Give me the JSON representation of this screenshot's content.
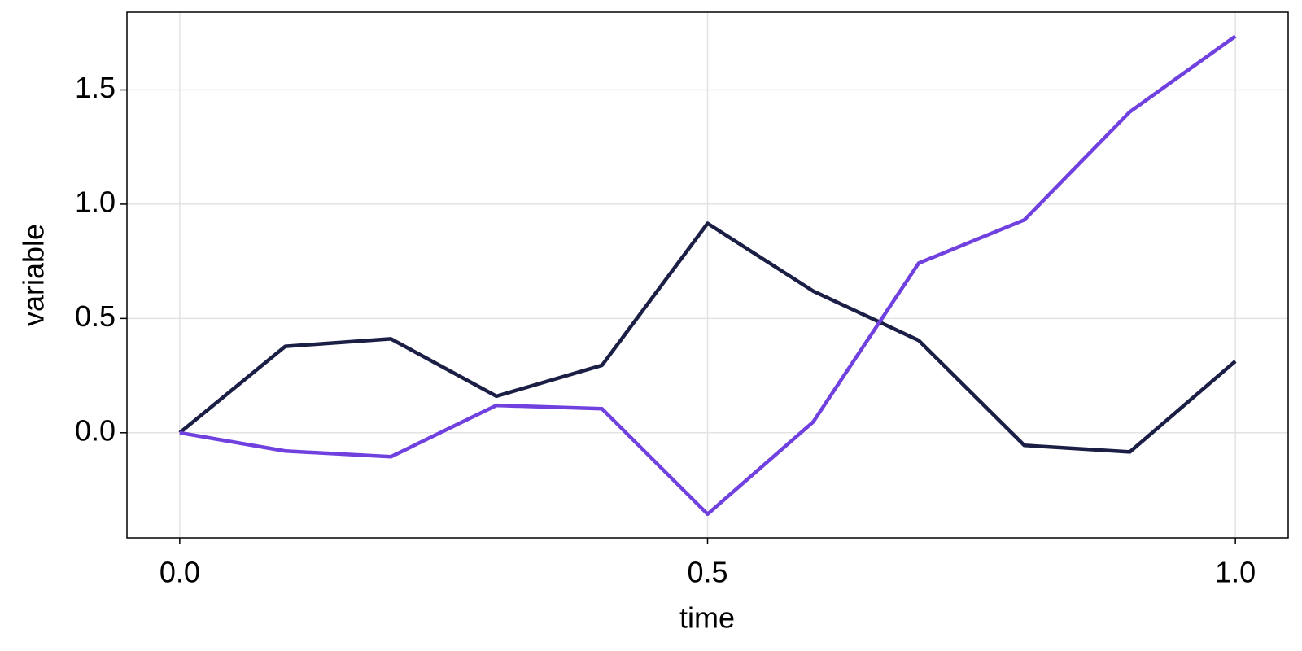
{
  "chart_data": {
    "type": "line",
    "x": [
      0,
      0.1,
      0.2,
      0.3,
      0.4,
      0.5,
      0.6,
      0.7,
      0.8,
      0.9,
      1.0
    ],
    "series": [
      {
        "color": "#1c1f45",
        "values": [
          0,
          0.378,
          0.411,
          0.16,
          0.295,
          0.916,
          0.62,
          0.404,
          -0.055,
          -0.084,
          0.313
        ]
      },
      {
        "color": "#7141e0",
        "values": [
          0,
          -0.08,
          -0.105,
          0.12,
          0.105,
          -0.356,
          0.047,
          0.742,
          0.931,
          1.404,
          1.735
        ]
      }
    ],
    "xlabel": "time",
    "ylabel": "variable",
    "xlim": [
      -0.05,
      1.05
    ],
    "ylim": [
      -0.46,
      1.84
    ],
    "xticks": [
      {
        "value": 0,
        "label": "0.0"
      },
      0.5,
      {
        "value": 1,
        "label": "1.0"
      }
    ],
    "yticks": [
      {
        "value": 0,
        "label": "0.0"
      },
      0.5,
      {
        "value": 1,
        "label": "1.0"
      },
      1.5
    ],
    "grid": true
  }
}
